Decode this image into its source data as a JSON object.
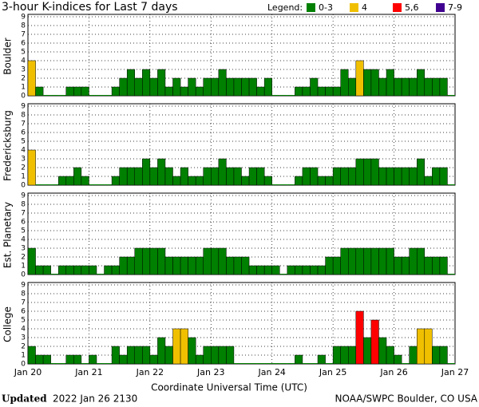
{
  "chart_data": {
    "type": "bar",
    "title": "3-hour K-indices for Last 7 days",
    "legend_title": "Legend:",
    "legend": [
      {
        "label": "0-3",
        "color": "#008000"
      },
      {
        "label": "4",
        "color": "#f0c000"
      },
      {
        "label": "5,6",
        "color": "#ff0000"
      },
      {
        "label": "7-9",
        "color": "#400090"
      }
    ],
    "xlabel": "Coordinate Universal Time (UTC)",
    "xticks": [
      "Jan 20",
      "Jan 21",
      "Jan 22",
      "Jan 23",
      "Jan 24",
      "Jan 25",
      "Jan 26",
      "Jan 27"
    ],
    "ylim": [
      0,
      9
    ],
    "yticks": [
      0,
      1,
      2,
      3,
      4,
      5,
      6,
      7,
      8,
      9
    ],
    "grid": true,
    "series": [
      {
        "name": "Boulder",
        "values": [
          4,
          1,
          0,
          0,
          0,
          1,
          1,
          1,
          0,
          0,
          0,
          1,
          2,
          3,
          2,
          3,
          2,
          3,
          1,
          2,
          1,
          2,
          1,
          2,
          2,
          3,
          2,
          2,
          2,
          2,
          1,
          2,
          0,
          0,
          0,
          1,
          1,
          2,
          1,
          1,
          1,
          3,
          2,
          4,
          3,
          3,
          2,
          3,
          2,
          2,
          2,
          3,
          2,
          2,
          2,
          0
        ]
      },
      {
        "name": "Fredericksburg",
        "values": [
          4,
          0,
          0,
          0,
          1,
          1,
          2,
          1,
          0,
          0,
          0,
          1,
          2,
          2,
          2,
          3,
          2,
          3,
          2,
          1,
          2,
          1,
          1,
          2,
          2,
          3,
          2,
          2,
          1,
          2,
          2,
          1,
          0,
          0,
          0,
          1,
          2,
          2,
          1,
          1,
          2,
          2,
          2,
          3,
          3,
          3,
          2,
          2,
          2,
          2,
          2,
          3,
          1,
          2,
          2,
          0
        ]
      },
      {
        "name": "Est. Planetary",
        "values": [
          3,
          1,
          1,
          0,
          1,
          1,
          1,
          1,
          1,
          0,
          1,
          1,
          2,
          2,
          3,
          3,
          3,
          3,
          2,
          2,
          2,
          2,
          2,
          3,
          3,
          3,
          2,
          2,
          2,
          1,
          1,
          1,
          1,
          0,
          1,
          1,
          1,
          1,
          1,
          2,
          2,
          3,
          3,
          3,
          3,
          3,
          3,
          3,
          2,
          2,
          3,
          3,
          2,
          2,
          2,
          0
        ]
      },
      {
        "name": "College",
        "values": [
          2,
          1,
          1,
          0,
          0,
          1,
          1,
          0,
          1,
          0,
          0,
          2,
          1,
          2,
          2,
          2,
          1,
          3,
          2,
          4,
          4,
          3,
          1,
          2,
          2,
          2,
          2,
          0,
          0,
          0,
          0,
          0,
          0,
          0,
          0,
          1,
          0,
          0,
          1,
          0,
          2,
          2,
          2,
          6,
          3,
          5,
          3,
          2,
          1,
          0,
          2,
          4,
          4,
          2,
          2,
          0
        ]
      }
    ],
    "footer_bold": "Updated",
    "footer_date": "2022 Jan 26 2130",
    "footer_right": "NOAA/SWPC Boulder, CO USA"
  }
}
